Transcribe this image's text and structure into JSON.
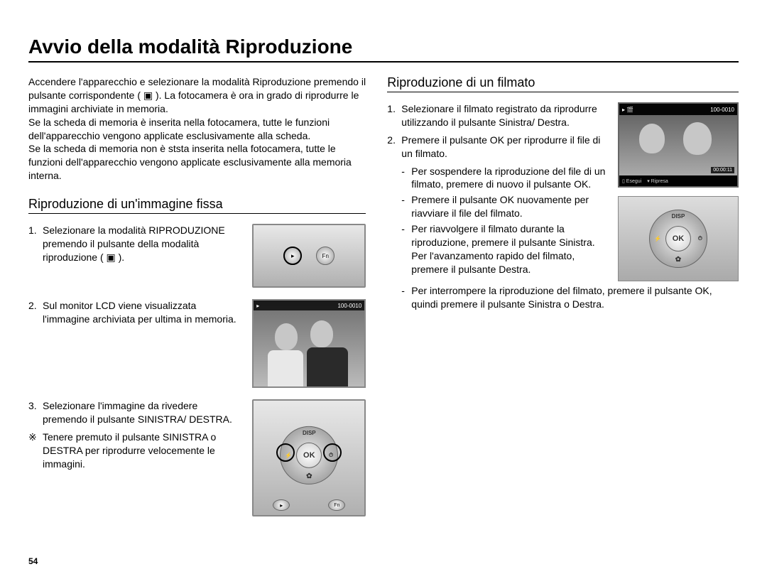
{
  "page": {
    "title": "Avvio della modalità Riproduzione",
    "number": "54"
  },
  "intro": "Accendere l'apparecchio e selezionare la modalità Riproduzione premendo il pulsante corrispondente ( ▣ ). La fotocamera è ora in grado di riprodurre le immagini archiviate in memoria.\nSe la scheda di memoria è inserita nella fotocamera, tutte le funzioni dell'apparecchio vengono applicate esclusivamente alla scheda.\nSe la scheda di memoria non è ststa inserita nella fotocamera, tutte le funzioni dell'apparecchio vengono applicate esclusivamente alla memoria interna.",
  "left": {
    "heading": "Riproduzione di un'immagine fissa",
    "step1": "Selezionare la modalità RIPRODUZIONE premendo il pulsante della modalità riproduzione ( ▣ ).",
    "step2": "Sul monitor LCD viene visualizzata l'immagine archiviata per ultima in memoria.",
    "step3": "Selezionare l'immagine da rivedere premendo il pulsante SINISTRA/ DESTRA.",
    "note": "Tenere premuto il pulsante SINISTRA o DESTRA per riprodurre velocemente le immagini.",
    "photo_counter": "100-0010"
  },
  "right": {
    "heading": "Riproduzione di un filmato",
    "step1": "Selezionare il filmato registrato da riprodurre utilizzando il pulsante Sinistra/ Destra.",
    "step2": "Premere il pulsante OK per riprodurre il file di un filmato.",
    "b1": "Per sospendere la riproduzione del file di un filmato, premere di nuovo il pulsante OK.",
    "b2": "Premere il pulsante OK nuovamente per riavviare il file del filmato.",
    "b3": "Per riavvolgere il filmato durante la riproduzione, premere il pulsante Sinistra. Per l'avanzamento rapido del filmato, premere il pulsante Destra.",
    "b4": "Per interrompere la riproduzione del filmato, premere il pulsante OK, quindi premere il pulsante Sinistra o Destra.",
    "lcd": {
      "counter": "100-0010",
      "timer": "00:00:11",
      "bot_ok": "Esegui",
      "bot_down": "Ripresa"
    },
    "pad": {
      "center": "OK",
      "top": "DISP"
    }
  },
  "colors": {
    "text": "#000000",
    "background": "#ffffff",
    "img_border": "#888888"
  }
}
